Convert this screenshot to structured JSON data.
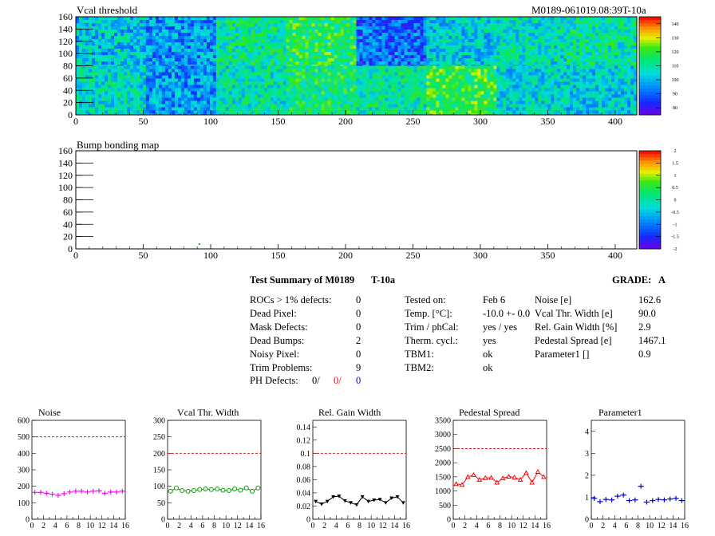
{
  "header": {
    "title_left": "Vcal threshold",
    "title_right": "M0189-061019.08:39T-10a"
  },
  "maps": [
    {
      "title": "Vcal threshold",
      "xticks": [
        "0",
        "50",
        "100",
        "150",
        "200",
        "250",
        "300",
        "350",
        "400"
      ],
      "yticks": [
        "0",
        "20",
        "40",
        "60",
        "80",
        "100",
        "120",
        "140",
        "160"
      ],
      "palette_ticks": [
        "140",
        "130",
        "120",
        "110",
        "100",
        "90",
        "80"
      ]
    },
    {
      "title": "Bump bonding map",
      "xticks": [
        "0",
        "50",
        "100",
        "150",
        "200",
        "250",
        "300",
        "350",
        "400"
      ],
      "yticks": [
        "0",
        "20",
        "40",
        "60",
        "80",
        "100",
        "120",
        "140",
        "160"
      ],
      "palette_ticks": [
        "2",
        "1.5",
        "1",
        "0.5",
        "0",
        "-0.5",
        "-1",
        "-1.5",
        "-2"
      ]
    }
  ],
  "summary": {
    "title": "Test Summary of M0189",
    "temp_tag": "T-10a",
    "grade_label": "GRADE:",
    "grade": "A",
    "left": [
      {
        "label": "ROCs > 1% defects:",
        "value": "0"
      },
      {
        "label": "Dead Pixel:",
        "value": "0"
      },
      {
        "label": "Mask Defects:",
        "value": "0"
      },
      {
        "label": "Dead Bumps:",
        "value": "2"
      },
      {
        "label": "Noisy Pixel:",
        "value": "0"
      },
      {
        "label": "Trim Problems:",
        "value": "9"
      }
    ],
    "ph": {
      "label": "PH Defects:",
      "v1": "0/",
      "v2": "0/",
      "v3": "0",
      "c2": "#ff0000",
      "c3": "#0000ff"
    },
    "middle": [
      {
        "label": "Tested on:",
        "value": "Feb 6"
      },
      {
        "label": "Temp. [°C]:",
        "value": "-10.0 +- 0.0"
      },
      {
        "label": "Trim / phCal:",
        "value": "yes / yes"
      },
      {
        "label": "Therm. cycl.:",
        "value": "yes"
      },
      {
        "label": "TBM1:",
        "value": "ok"
      },
      {
        "label": "TBM2:",
        "value": "ok"
      }
    ],
    "right": [
      {
        "label": "Noise [e]",
        "value": "162.6"
      },
      {
        "label": "Vcal Thr. Width [e]",
        "value": "90.0"
      },
      {
        "label": "Rel. Gain Width [%]",
        "value": "2.9"
      },
      {
        "label": "Pedestal Spread [e]",
        "value": "1467.1"
      },
      {
        "label": "Parameter1 []",
        "value": "0.9"
      }
    ]
  },
  "chart_data": [
    {
      "type": "heatmap",
      "title": "Vcal threshold",
      "xlim": [
        0,
        416
      ],
      "ylim": [
        0,
        160
      ],
      "zlim": [
        75,
        145
      ],
      "note": "16 ROC blocks (8 top, 8 bottom), each 52x80 pixels"
    },
    {
      "type": "heatmap",
      "title": "Bump bonding map",
      "xlim": [
        0,
        416
      ],
      "ylim": [
        0,
        160
      ],
      "zlim": [
        -2,
        2
      ]
    },
    {
      "type": "scatter",
      "title": "Noise",
      "color": "#ff00ff",
      "marker": "cross",
      "ylim": [
        0,
        600
      ],
      "yticks": [
        0,
        100,
        200,
        300,
        400,
        500,
        600
      ],
      "limit": 500,
      "x": [
        0,
        1,
        2,
        3,
        4,
        5,
        6,
        7,
        8,
        9,
        10,
        11,
        12,
        13,
        14,
        15
      ],
      "values": [
        163,
        163,
        158,
        152,
        145,
        155,
        165,
        170,
        170,
        165,
        170,
        172,
        158,
        165,
        165,
        170
      ]
    },
    {
      "type": "line",
      "title": "Vcal Thr. Width",
      "color": "#00a000",
      "marker": "circle",
      "ylim": [
        0,
        300
      ],
      "yticks": [
        0,
        50,
        100,
        150,
        200,
        250,
        300
      ],
      "limit": 200,
      "x": [
        0,
        1,
        2,
        3,
        4,
        5,
        6,
        7,
        8,
        9,
        10,
        11,
        12,
        13,
        14,
        15
      ],
      "values": [
        85,
        95,
        87,
        85,
        87,
        90,
        92,
        90,
        92,
        88,
        87,
        92,
        88,
        95,
        85,
        95
      ]
    },
    {
      "type": "line",
      "title": "Rel. Gain Width",
      "color": "#000000",
      "marker": "triangle-down",
      "ylim": [
        0,
        0.15
      ],
      "yticks": [
        0,
        0.02,
        0.04,
        0.06,
        0.08,
        0.1,
        0.12,
        0.14
      ],
      "yticklabels": [
        "0",
        "0.02",
        "0.04",
        "0.06",
        "0.08",
        "0.1",
        "0.12",
        "0.14"
      ],
      "limit": 0.1,
      "x": [
        0,
        1,
        2,
        3,
        4,
        5,
        6,
        7,
        8,
        9,
        10,
        11,
        12,
        13,
        14,
        15
      ],
      "values": [
        0.027,
        0.023,
        0.027,
        0.034,
        0.035,
        0.028,
        0.025,
        0.022,
        0.034,
        0.027,
        0.029,
        0.03,
        0.025,
        0.032,
        0.034,
        0.025
      ]
    },
    {
      "type": "line",
      "title": "Pedestal Spread",
      "color": "#ff0000",
      "marker": "triangle-up",
      "ylim": [
        0,
        3500
      ],
      "yticks": [
        0,
        500,
        1000,
        1500,
        2000,
        2500,
        3000,
        3500
      ],
      "limit": 2500,
      "x": [
        0,
        1,
        2,
        3,
        4,
        5,
        6,
        7,
        8,
        9,
        10,
        11,
        12,
        13,
        14,
        15
      ],
      "values": [
        1250,
        1220,
        1500,
        1570,
        1400,
        1460,
        1470,
        1300,
        1450,
        1510,
        1480,
        1400,
        1640,
        1300,
        1680,
        1500
      ]
    },
    {
      "type": "scatter",
      "title": "Parameter1",
      "color": "#0000cc",
      "marker": "cross",
      "ylim": [
        0,
        4.5
      ],
      "yticks": [
        0,
        1,
        2,
        3,
        4
      ],
      "limit": null,
      "x": [
        0,
        1,
        2,
        3,
        4,
        5,
        6,
        7,
        8,
        9,
        10,
        11,
        12,
        13,
        14,
        15
      ],
      "values": [
        0.95,
        0.8,
        0.9,
        0.88,
        1.05,
        1.1,
        0.85,
        0.88,
        1.5,
        0.78,
        0.85,
        0.9,
        0.88,
        0.92,
        0.95,
        0.85
      ]
    }
  ]
}
